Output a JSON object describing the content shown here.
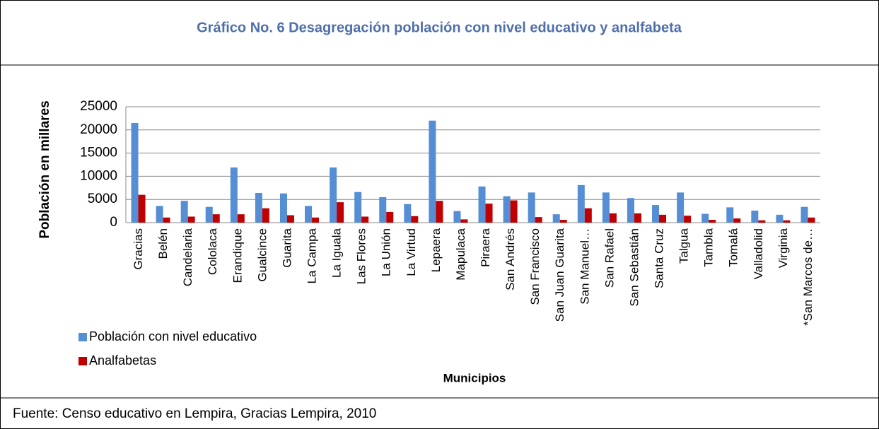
{
  "chart_data": {
    "type": "bar",
    "title": "Gráfico No. 6 Desagregación población con nivel educativo y analfabeta",
    "ylabel": "Población en millares",
    "xlabel": "Municipios",
    "source": "Fuente: Censo educativo en Lempira, Gracias Lempira, 2010",
    "categories": [
      "Gracias",
      "Belén",
      "Candelaria",
      "Cololaca",
      "Erandique",
      "Gualcince",
      "Guarita",
      "La Campa",
      "La Iguala",
      "Las Flores",
      "La Unión",
      "La Virtud",
      "Lepaera",
      "Mapulaca",
      "Piraera",
      "San Andrés",
      "San Francisco",
      "San Juan Guarita",
      "San Manuel…",
      "San Rafael",
      "San Sebastián",
      "Santa Cruz",
      "Talgua",
      "Tambla",
      "Tomalá",
      "Valladolid",
      "Virginia",
      "*San Marcos de…"
    ],
    "series": [
      {
        "name": "Población con nivel educativo",
        "color": "#558ed5",
        "values": [
          21500,
          3600,
          4700,
          3400,
          11900,
          6400,
          6300,
          3600,
          11900,
          6600,
          5500,
          4000,
          22000,
          2500,
          7800,
          5700,
          6500,
          1800,
          8100,
          6500,
          5300,
          3800,
          6500,
          1900,
          3300,
          2600,
          1700,
          3400
        ]
      },
      {
        "name": "Analfabetas",
        "color": "#c00000",
        "values": [
          6000,
          1100,
          1300,
          1800,
          1800,
          3100,
          1600,
          1100,
          4400,
          1300,
          2300,
          1400,
          4700,
          700,
          4100,
          4800,
          1200,
          600,
          3100,
          2000,
          2000,
          1700,
          1500,
          600,
          900,
          500,
          500,
          1100
        ]
      }
    ],
    "ylim": [
      0,
      25000
    ],
    "yticks": [
      0,
      5000,
      10000,
      15000,
      20000,
      25000
    ],
    "grid": true
  }
}
